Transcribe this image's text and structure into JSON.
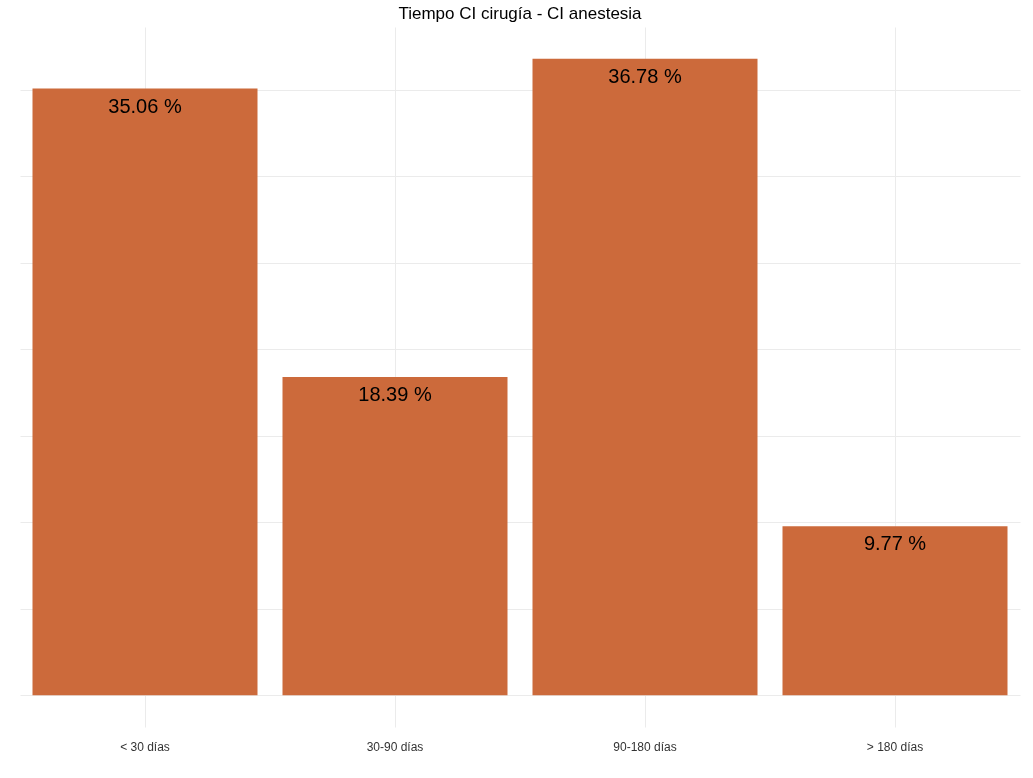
{
  "chart_data": {
    "type": "bar",
    "title": "Tiempo CI cirugía - CI anestesia",
    "categories": [
      "< 30 días",
      "30-90 días",
      "90-180 días",
      "> 180 días"
    ],
    "values": [
      35.06,
      18.39,
      36.78,
      9.77
    ],
    "value_labels": [
      "35.06 %",
      "18.39 %",
      "36.78 %",
      "9.77 %"
    ],
    "color": "#cc6a3b",
    "ylim": [
      -1.84,
      38.62
    ],
    "yticks": [
      {
        "value": 0,
        "label": null
      },
      {
        "value": 5,
        "label": null
      },
      {
        "value": 10,
        "label": null
      },
      {
        "value": 15,
        "label": null
      },
      {
        "value": 20,
        "label": null
      },
      {
        "value": 25,
        "label": null
      },
      {
        "value": 30,
        "label": null
      },
      {
        "value": 35,
        "label": null
      }
    ],
    "tick_labels": "x",
    "grid": true
  }
}
